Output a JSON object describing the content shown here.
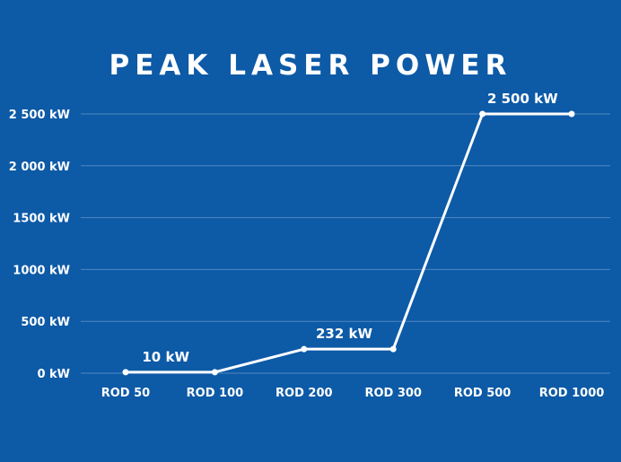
{
  "chart_data": {
    "type": "line",
    "title": "PEAK LASER POWER",
    "categories": [
      "ROD 50",
      "ROD 100",
      "ROD 200",
      "ROD 300",
      "ROD 500",
      "ROD 1000"
    ],
    "values": [
      10,
      10,
      232,
      232,
      2500,
      2500
    ],
    "y_ticks": [
      0,
      500,
      1000,
      1500,
      2000,
      2500
    ],
    "y_tick_labels": [
      "0 kW",
      "500 kW",
      "1000 kW",
      "1500 kW",
      "2 000 kW",
      "2 500 kW"
    ],
    "ylim": [
      0,
      2500
    ],
    "grid": true,
    "data_labels": [
      {
        "index": 0,
        "text": "10 kW"
      },
      {
        "index": 2,
        "text": "232 kW"
      },
      {
        "index": 4,
        "text": "2 500 kW"
      }
    ],
    "colors": {
      "background": "#0d5aa7",
      "line": "#ffffff",
      "text": "#ffffff"
    }
  }
}
